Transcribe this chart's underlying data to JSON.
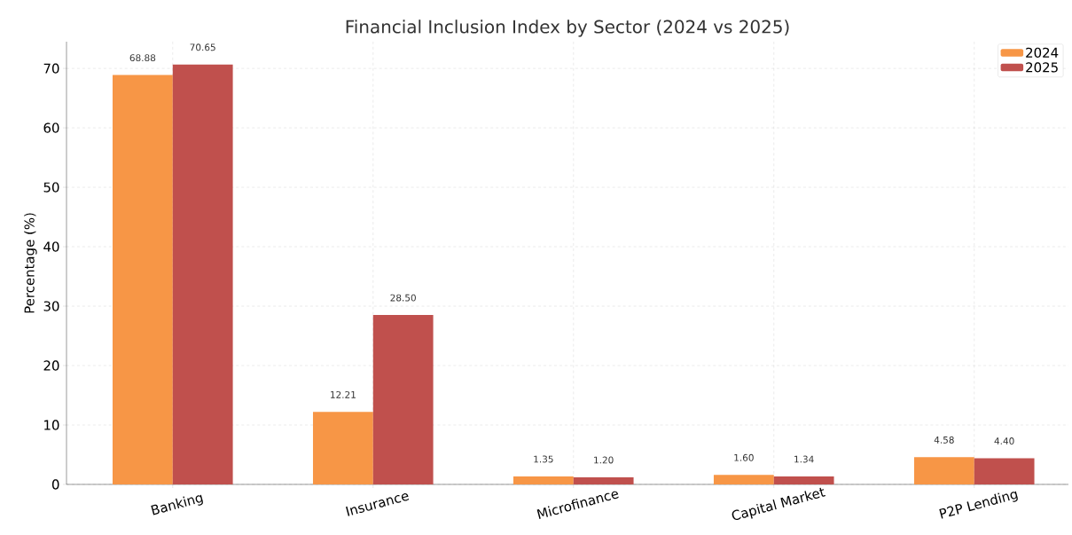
{
  "chart_data": {
    "type": "bar",
    "title": "Financial Inclusion Index by Sector (2024 vs 2025)",
    "ylabel": "Percentage (%)",
    "categories": [
      "Banking",
      "Insurance",
      "Microfinance",
      "Capital Market",
      "P2P Lending"
    ],
    "series": [
      {
        "name": "2024",
        "color": "#f79646",
        "values": [
          68.88,
          12.21,
          1.35,
          1.6,
          4.58
        ],
        "value_labels": [
          "68.88",
          "12.21",
          "1.35",
          "1.60",
          "4.58"
        ]
      },
      {
        "name": "2025",
        "color": "#c0504d",
        "values": [
          70.65,
          28.5,
          1.2,
          1.34,
          4.4
        ],
        "value_labels": [
          "70.65",
          "28.50",
          "1.20",
          "1.34",
          "4.40"
        ]
      }
    ],
    "ylim": [
      0,
      74.5
    ],
    "yticks": [
      0,
      10,
      20,
      30,
      40,
      50,
      60,
      70
    ],
    "grid": true,
    "legend": "top right"
  }
}
